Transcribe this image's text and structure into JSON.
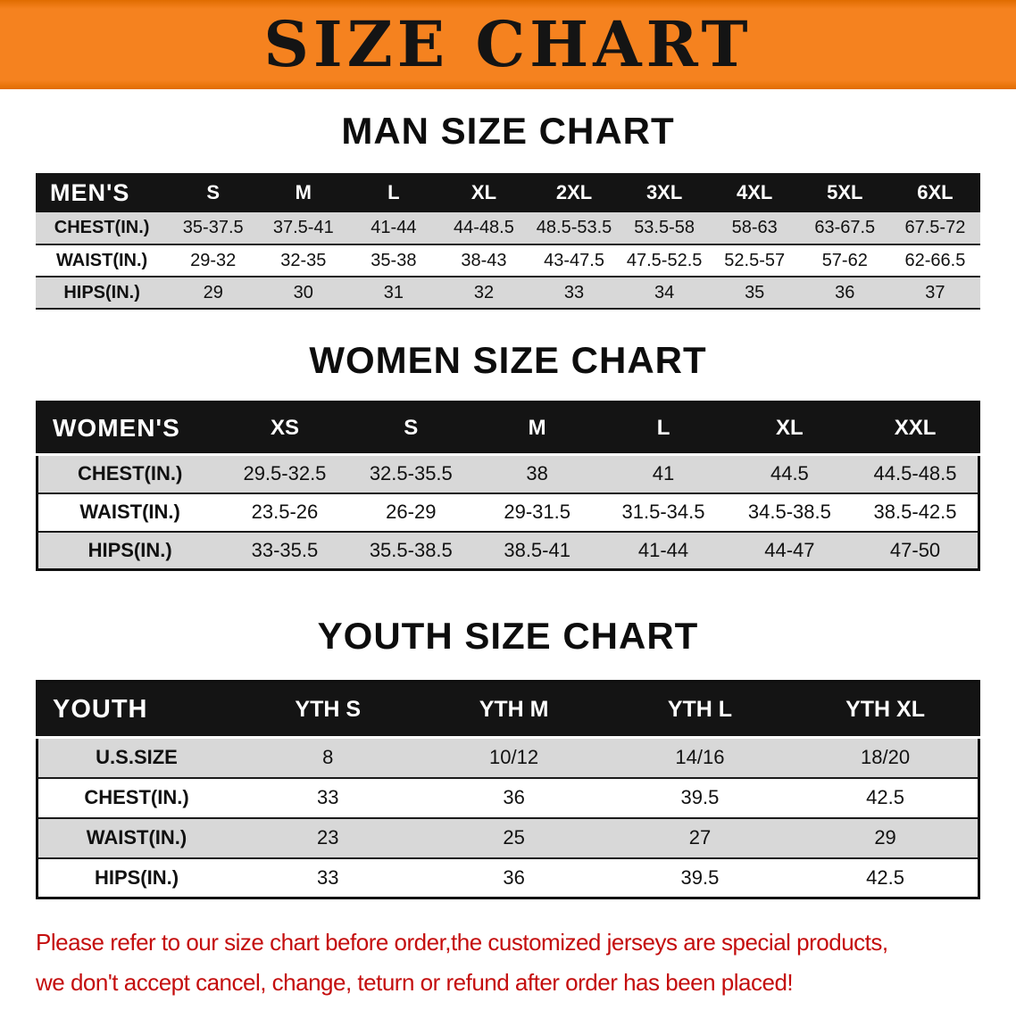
{
  "banner": {
    "title": "SIZE CHART"
  },
  "colors": {
    "banner_orange": "#f5821f",
    "banner_edge": "#e06c00",
    "header_black": "#141414",
    "stripe_gray": "#d8d8d8",
    "notice_red": "#c40d0d"
  },
  "sections": [
    {
      "id": "men",
      "heading": "MAN SIZE CHART",
      "table": {
        "header": [
          "MEN'S",
          "S",
          "M",
          "L",
          "XL",
          "2XL",
          "3XL",
          "4XL",
          "5XL",
          "6XL"
        ],
        "rows": [
          {
            "label": "CHEST(IN.)",
            "cells": [
              "35-37.5",
              "37.5-41",
              "41-44",
              "44-48.5",
              "48.5-53.5",
              "53.5-58",
              "58-63",
              "63-67.5",
              "67.5-72"
            ]
          },
          {
            "label": "WAIST(IN.)",
            "cells": [
              "29-32",
              "32-35",
              "35-38",
              "38-43",
              "43-47.5",
              "47.5-52.5",
              "52.5-57",
              "57-62",
              "62-66.5"
            ]
          },
          {
            "label": "HIPS(IN.)",
            "cells": [
              "29",
              "30",
              "31",
              "32",
              "33",
              "34",
              "35",
              "36",
              "37"
            ]
          }
        ]
      }
    },
    {
      "id": "women",
      "heading": "WOMEN SIZE CHART",
      "table": {
        "header": [
          "WOMEN'S",
          "XS",
          "S",
          "M",
          "L",
          "XL",
          "XXL"
        ],
        "rows": [
          {
            "label": "CHEST(IN.)",
            "cells": [
              "29.5-32.5",
              "32.5-35.5",
              "38",
              "41",
              "44.5",
              "44.5-48.5"
            ]
          },
          {
            "label": "WAIST(IN.)",
            "cells": [
              "23.5-26",
              "26-29",
              "29-31.5",
              "31.5-34.5",
              "34.5-38.5",
              "38.5-42.5"
            ]
          },
          {
            "label": "HIPS(IN.)",
            "cells": [
              "33-35.5",
              "35.5-38.5",
              "38.5-41",
              "41-44",
              "44-47",
              "47-50"
            ]
          }
        ]
      }
    },
    {
      "id": "youth",
      "heading": "YOUTH SIZE CHART",
      "table": {
        "header": [
          "YOUTH",
          "YTH S",
          "YTH M",
          "YTH L",
          "YTH XL"
        ],
        "rows": [
          {
            "label": "U.S.SIZE",
            "cells": [
              "8",
              "10/12",
              "14/16",
              "18/20"
            ]
          },
          {
            "label": "CHEST(IN.)",
            "cells": [
              "33",
              "36",
              "39.5",
              "42.5"
            ]
          },
          {
            "label": "WAIST(IN.)",
            "cells": [
              "23",
              "25",
              "27",
              "29"
            ]
          },
          {
            "label": "HIPS(IN.)",
            "cells": [
              "33",
              "36",
              "39.5",
              "42.5"
            ]
          }
        ]
      }
    }
  ],
  "notice": {
    "line1": "Please refer to our size chart before order,the customized jerseys are special products,",
    "line2": "we don't accept cancel, change, teturn or refund after order has been placed!"
  }
}
